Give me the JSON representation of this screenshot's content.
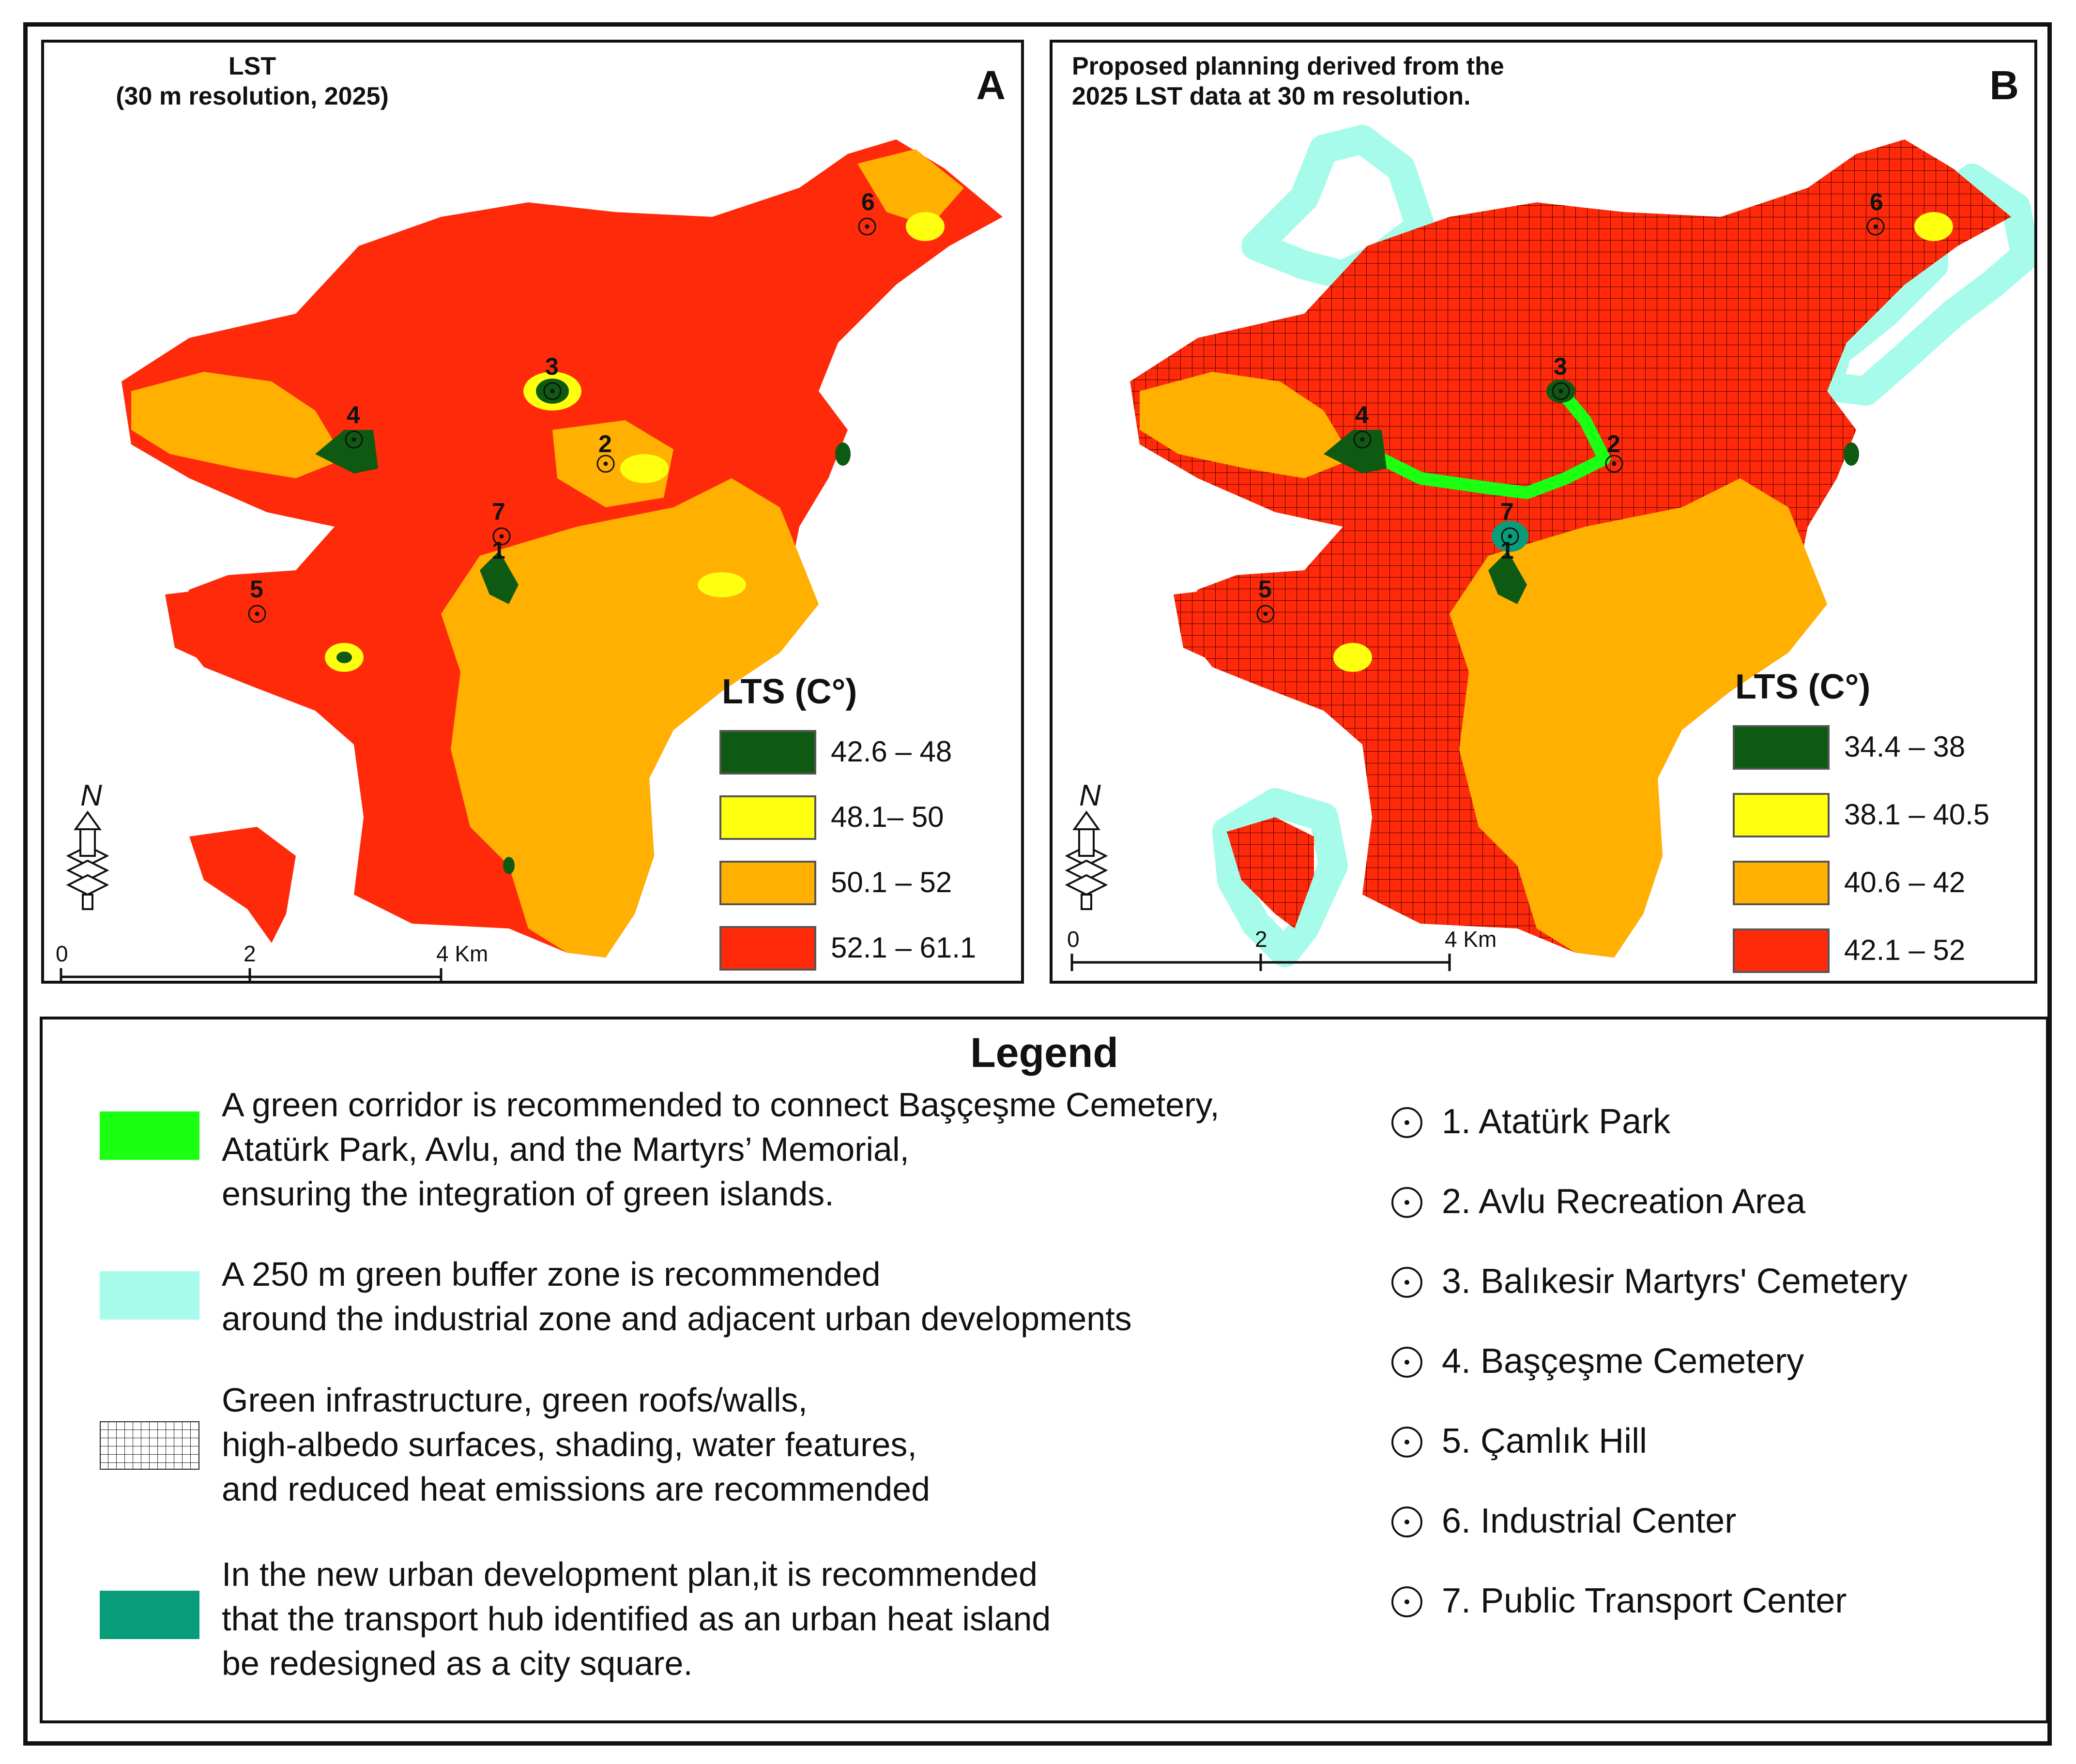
{
  "panelA": {
    "title_line1": "LST",
    "title_line2": "(30 m resolution, 2025)",
    "letter": "A",
    "legend_title": "LTS (C°)",
    "classes": [
      {
        "label": "42.6 – 48",
        "color": "#0f5a12"
      },
      {
        "label": "48.1– 50",
        "color": "#ffff10"
      },
      {
        "label": "50.1 – 52",
        "color": "#ffb000"
      },
      {
        "label": "52.1 – 61.1",
        "color": "#ff2a0a"
      }
    ],
    "scale": [
      "0",
      "2",
      "4 Km"
    ],
    "north": "N"
  },
  "panelB": {
    "title_line1": "Proposed planning derived from the",
    "title_line2": "2025 LST data at 30 m resolution.",
    "letter": "B",
    "legend_title": "LTS (C°)",
    "classes": [
      {
        "label": "34.4 – 38",
        "color": "#0f5a12"
      },
      {
        "label": "38.1 – 40.5",
        "color": "#ffff10"
      },
      {
        "label": "40.6 – 42",
        "color": "#ffb000"
      },
      {
        "label": "42.1 – 52",
        "color": "#ff2a0a"
      }
    ],
    "scale": [
      "0",
      "2",
      "4 Km"
    ],
    "north": "N"
  },
  "site_numbers": [
    "1",
    "2",
    "3",
    "4",
    "5",
    "6",
    "7"
  ],
  "legend": {
    "title": "Legend",
    "items": [
      {
        "text": "A green corridor is recommended to connect Başçeşme Cemetery,\nAtatürk Park, Avlu, and the Martyrs’ Memorial,\nensuring the integration of green islands.",
        "color": "#1aff12"
      },
      {
        "text": "A 250 m green buffer zone is recommended\naround the industrial zone and adjacent urban developments",
        "color": "#a6fbea"
      },
      {
        "text": "Green infrastructure, green roofs/walls,\n high-albedo surfaces, shading, water features,\nand reduced heat emissions are recommended",
        "color": "#ffffff"
      },
      {
        "text": "In the new urban development plan,it is recommended\nthat the transport hub identified as an urban heat island\n be redesigned as a city square.",
        "color": "#089c78"
      }
    ],
    "sites": [
      "1. Atatürk Park",
      "2. Avlu Recreation Area",
      "3. Balıkesir Martyrs' Cemetery",
      "4. Başçeşme Cemetery",
      "5. Çamlık  Hill",
      "6. Industrial Center",
      "7. Public Transport Center"
    ]
  },
  "colors": {
    "green_corridor": "#1aff12",
    "buffer": "#a6fbea",
    "city_square": "#089c78",
    "dark_green": "#0f5a12",
    "yellow": "#ffff10",
    "orange": "#ffb000",
    "red": "#ff2a0a"
  }
}
